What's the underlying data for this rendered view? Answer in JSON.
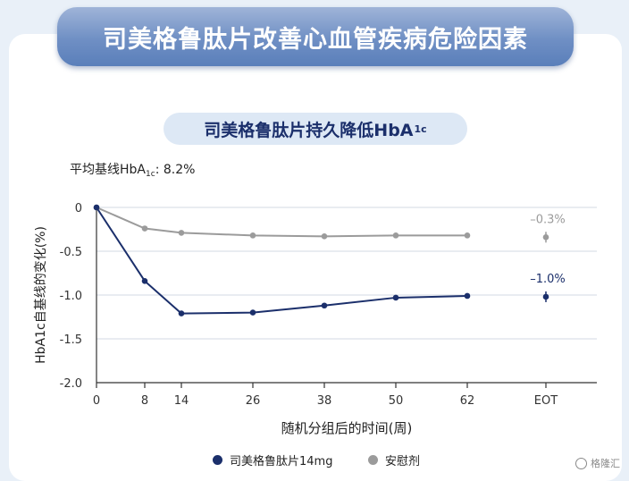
{
  "banner_title": "司美格鲁肽片改善心血管疾病危险因素",
  "subtitle": {
    "text": "司美格鲁肽片持久降低HbA",
    "sub": "1c"
  },
  "baseline_note": {
    "pre": "平均基线HbA",
    "sub": "1c",
    "post": ": 8.2%"
  },
  "legend": [
    {
      "label": "司美格鲁肽片14mg",
      "color": "#1b2f6b"
    },
    {
      "label": "安慰剂",
      "color": "#9b9b9b"
    }
  ],
  "watermark": "格隆汇",
  "chart_data": {
    "type": "line",
    "x": [
      0,
      8,
      14,
      26,
      38,
      50,
      62
    ],
    "xticks": [
      "0",
      "8",
      "14",
      "26",
      "38",
      "50",
      "62",
      "EOT"
    ],
    "xlabel": "随机分组后的时间(周)",
    "ylabel": "HbA1c自基线的变化(%)",
    "yticks": [
      "0",
      "-0.5",
      "-1.0",
      "-1.5",
      "-2.0"
    ],
    "ylim": [
      -2.0,
      0
    ],
    "grid": true,
    "series": [
      {
        "name": "安慰剂",
        "color": "#9b9b9b",
        "values": [
          0,
          -0.24,
          -0.29,
          -0.32,
          -0.33,
          -0.32,
          -0.32
        ],
        "eot": -0.34,
        "eot_label": "–0.3%"
      },
      {
        "name": "司美格鲁肽片14mg",
        "color": "#1b2f6b",
        "values": [
          0,
          -0.84,
          -1.21,
          -1.2,
          -1.12,
          -1.03,
          -1.01
        ],
        "eot": -1.02,
        "eot_label": "–1.0%"
      }
    ]
  }
}
